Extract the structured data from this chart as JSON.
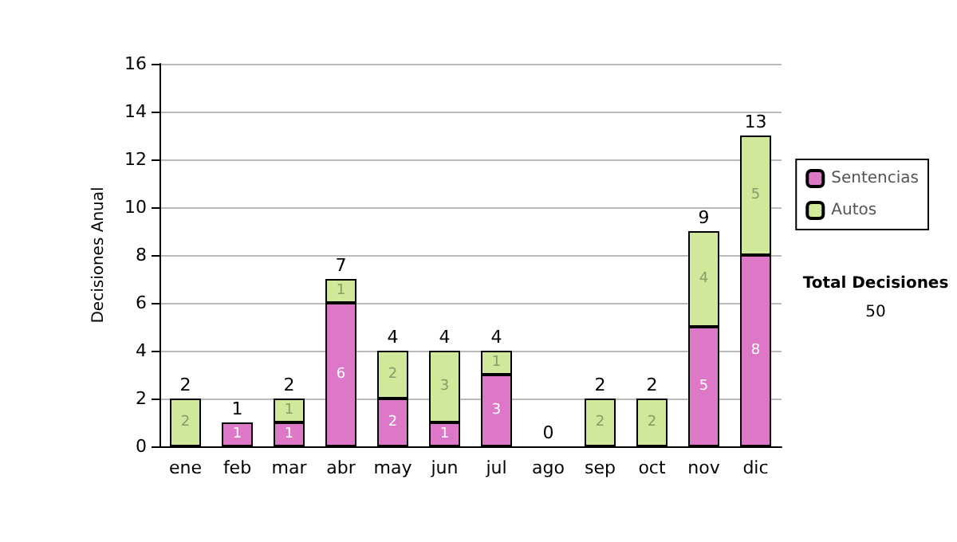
{
  "chart_data": {
    "type": "bar",
    "ylabel": "Decisiones Anual",
    "categories": [
      "ene",
      "feb",
      "mar",
      "abr",
      "may",
      "jun",
      "jul",
      "ago",
      "sep",
      "oct",
      "nov",
      "dic"
    ],
    "stacked": true,
    "series": [
      {
        "name": "Sentencias",
        "color": "#dd77c8",
        "values": [
          0,
          1,
          1,
          6,
          2,
          1,
          3,
          0,
          0,
          0,
          5,
          8
        ],
        "value_labels": [
          null,
          "1",
          "1",
          "6",
          "2",
          "1",
          "3",
          null,
          null,
          null,
          "5",
          "8"
        ]
      },
      {
        "name": "Autos",
        "color": "#cfe89a",
        "values": [
          2,
          0,
          1,
          1,
          2,
          3,
          1,
          0,
          2,
          2,
          4,
          5
        ],
        "value_labels": [
          "2",
          null,
          "1",
          "1",
          "2",
          "3",
          "1",
          null,
          "2",
          "2",
          "4",
          "5"
        ]
      }
    ],
    "totals": [
      "2",
      "1",
      "2",
      "7",
      "4",
      "4",
      "4",
      "0",
      "2",
      "2",
      "9",
      "13"
    ],
    "ylim": [
      0,
      16
    ],
    "yticks": [
      0,
      2,
      4,
      6,
      8,
      10,
      12,
      14,
      16
    ],
    "grid": "y",
    "legend": "right",
    "annotations": [
      "Total Decisiones",
      "50"
    ]
  }
}
